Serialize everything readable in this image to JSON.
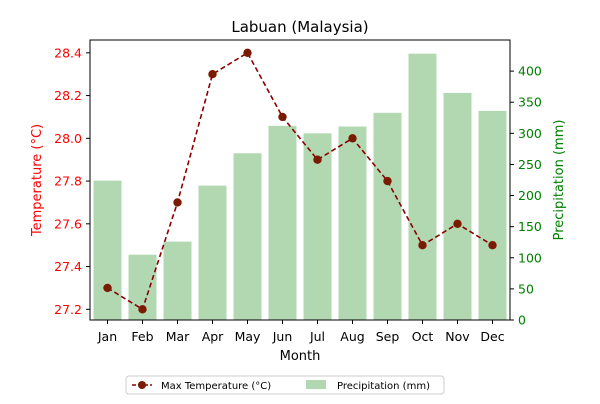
{
  "chart_data": {
    "type": "bar+line",
    "title": "Labuan (Malaysia)",
    "xlabel": "Month",
    "ylabel_left": "Temperature (°C)",
    "ylabel_right": "Precipitation (mm)",
    "categories": [
      "Jan",
      "Feb",
      "Mar",
      "Apr",
      "May",
      "Jun",
      "Jul",
      "Aug",
      "Sep",
      "Oct",
      "Nov",
      "Dec"
    ],
    "ylim_left": [
      27.15,
      28.46
    ],
    "ylim_right": [
      0,
      450
    ],
    "yticks_left": [
      "27.2",
      "27.4",
      "27.6",
      "27.8",
      "28.0",
      "28.2",
      "28.4"
    ],
    "yticks_right": [
      "0",
      "50",
      "100",
      "150",
      "200",
      "250",
      "300",
      "350",
      "400"
    ],
    "series": [
      {
        "name": "Max Temperature (°C)",
        "kind": "line",
        "axis": "left",
        "color": "#8b0000",
        "marker_color": "#7a1a00",
        "values": [
          27.3,
          27.2,
          27.7,
          28.3,
          28.4,
          28.1,
          27.9,
          28.0,
          27.8,
          27.5,
          27.6,
          27.5
        ]
      },
      {
        "name": "Precipitation (mm)",
        "kind": "bar",
        "axis": "right",
        "color": "#b2d8b2",
        "values": [
          224,
          105,
          126,
          216,
          268,
          312,
          300,
          311,
          333,
          428,
          365,
          336
        ]
      }
    ],
    "colors": {
      "left_axis": "#ff0000",
      "right_axis": "#008000",
      "text": "#000000"
    },
    "legend": {
      "placement": "bottom-center",
      "ncol": 2
    },
    "grid": false
  }
}
